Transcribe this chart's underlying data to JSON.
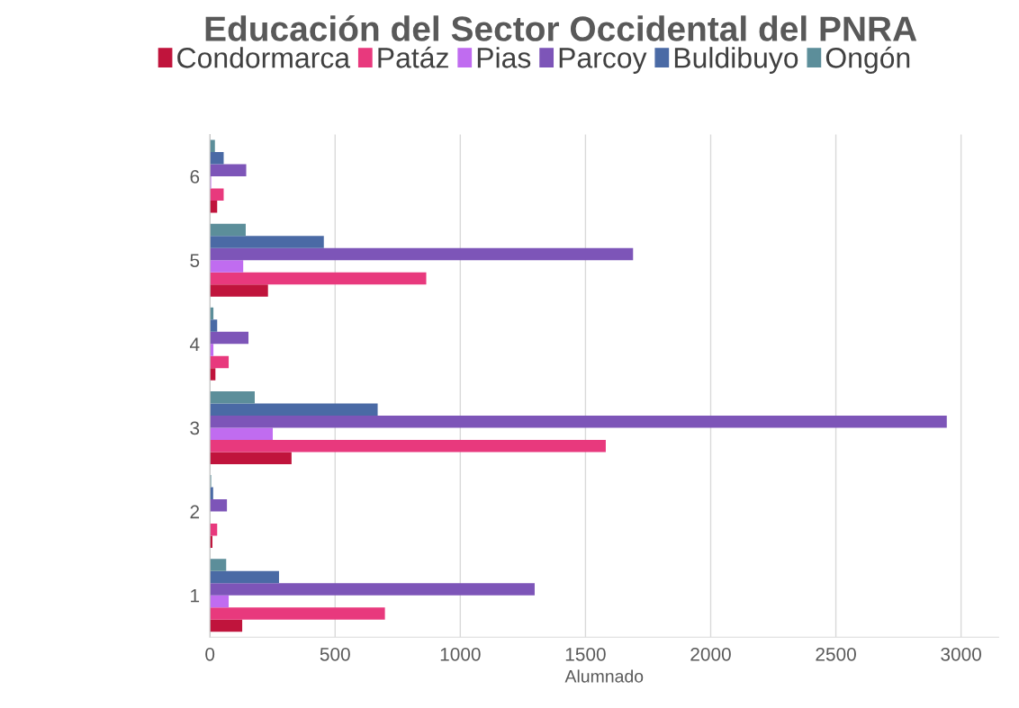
{
  "chart_data": {
    "type": "bar",
    "orientation": "horizontal",
    "title": "Educación del Sector Occidental del PNRA",
    "xlabel": "Alumnado",
    "categories": [
      "6",
      "5",
      "4",
      "3",
      "2",
      "1"
    ],
    "series": [
      {
        "name": "Condormarca",
        "color": "#c0143c",
        "values": [
          29,
          232,
          22,
          326,
          10,
          129
        ]
      },
      {
        "name": "Patáz",
        "color": "#e8397d",
        "values": [
          55,
          864,
          75,
          1581,
          29,
          699
        ]
      },
      {
        "name": "Pias",
        "color": "#c06cf0",
        "values": [
          5,
          133,
          14,
          251,
          null,
          75
        ]
      },
      {
        "name": "Parcoy",
        "color": "#7d55b8",
        "values": [
          145,
          1690,
          154,
          2943,
          68,
          1297
        ]
      },
      {
        "name": "Buldibuyo",
        "color": "#4a6aa5",
        "values": [
          55,
          455,
          29,
          670,
          13,
          276
        ]
      },
      {
        "name": "Ongón",
        "color": "#5c8e9a",
        "values": [
          20,
          143,
          14,
          179,
          5,
          65
        ]
      }
    ],
    "xlim": [
      0,
      3150
    ],
    "xticks": [
      0,
      500,
      1000,
      1500,
      2000,
      2500,
      3000
    ],
    "grid": "x",
    "legend": "top"
  }
}
